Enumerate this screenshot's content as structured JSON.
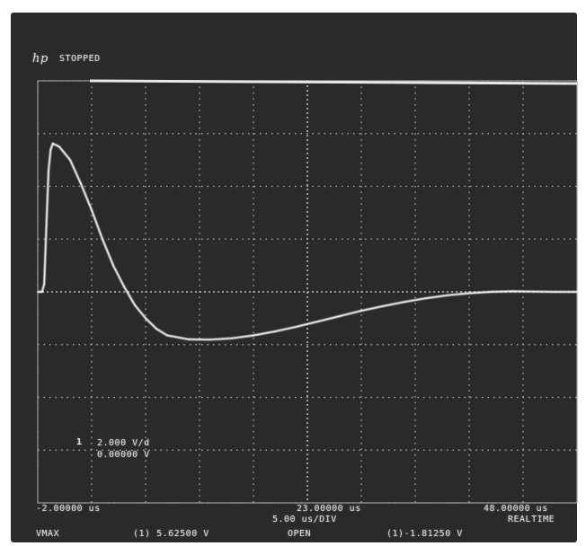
{
  "header": {
    "brand": "hp",
    "status": "STOPPED"
  },
  "channel": {
    "marker": "1",
    "scale": "2.000  V/d",
    "offset": "0.00000  V"
  },
  "timebase": {
    "left": "-2.00000 us",
    "center": "23.00000 us",
    "right": "48.00000 us",
    "per_div": "5.00 us/DIV",
    "mode": "REALTIME",
    "coupling": "OPEN"
  },
  "measurements": {
    "label": "VMAX",
    "vmax": "(1)  5.62500 V",
    "vmin": "(1)-1.81250 V"
  },
  "colors": {
    "screen_bg": "#2a2a2a",
    "grid": "#bdbdbd",
    "trace": "#f4f4f4"
  },
  "chart_data": {
    "type": "line",
    "title": "",
    "xlabel": "",
    "ylabel": "",
    "x_unit": "us",
    "y_unit": "V",
    "xlim": [
      -2,
      48
    ],
    "ylim": [
      -8,
      8
    ],
    "grid": true,
    "series": [
      {
        "x": [
          -2,
          -1.6,
          -1.4,
          -1.2,
          -1.0,
          -0.8,
          -0.6,
          0,
          1,
          2,
          3,
          4,
          5,
          6,
          7,
          8,
          9,
          10,
          12,
          14,
          16,
          18,
          20,
          22,
          24,
          26,
          28,
          30,
          32,
          34,
          36,
          38,
          40,
          42,
          44,
          46,
          48
        ],
        "y": [
          0.0,
          0.0,
          0.3,
          2.5,
          4.6,
          5.4,
          5.62,
          5.5,
          5.0,
          4.1,
          3.1,
          2.0,
          1.0,
          0.2,
          -0.5,
          -1.0,
          -1.4,
          -1.65,
          -1.8,
          -1.81,
          -1.76,
          -1.65,
          -1.5,
          -1.32,
          -1.12,
          -0.92,
          -0.72,
          -0.54,
          -0.38,
          -0.24,
          -0.13,
          -0.05,
          0.0,
          0.02,
          0.01,
          0.0,
          0.0
        ]
      }
    ]
  }
}
